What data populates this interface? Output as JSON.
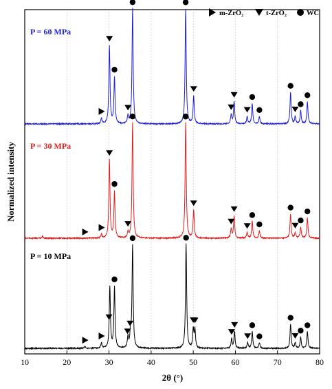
{
  "chart_data": {
    "type": "line",
    "xlabel": "2θ (°)",
    "ylabel": "Normalized intensity",
    "xlim": [
      10,
      80
    ],
    "x_ticks": [
      10,
      20,
      30,
      40,
      50,
      60,
      70,
      80
    ],
    "x_tick_labels": [
      "10",
      "20",
      "30",
      "40",
      "50",
      "60",
      "70",
      "80"
    ],
    "grid": "vertical dashed at major ticks",
    "legend": {
      "placement": "top-right",
      "entries": [
        {
          "marker": "right-triangle",
          "label": "m-ZrO₂"
        },
        {
          "marker": "down-triangle",
          "label": "t-ZrO₂"
        },
        {
          "marker": "circle",
          "label": "WC"
        }
      ]
    },
    "series": [
      {
        "name": "P = 60 MPa",
        "color": "#1f1fd6",
        "peaks": [
          {
            "x": 28.2,
            "h": 0.03
          },
          {
            "x": 30.1,
            "h": 0.42
          },
          {
            "x": 31.3,
            "h": 0.25
          },
          {
            "x": 34.5,
            "h": 0.04
          },
          {
            "x": 35.6,
            "h": 0.62
          },
          {
            "x": 48.2,
            "h": 0.62
          },
          {
            "x": 50.1,
            "h": 0.15
          },
          {
            "x": 59.0,
            "h": 0.05
          },
          {
            "x": 59.7,
            "h": 0.12
          },
          {
            "x": 62.8,
            "h": 0.04
          },
          {
            "x": 64.0,
            "h": 0.11
          },
          {
            "x": 65.7,
            "h": 0.04
          },
          {
            "x": 73.1,
            "h": 0.17
          },
          {
            "x": 74.2,
            "h": 0.04
          },
          {
            "x": 75.5,
            "h": 0.07
          },
          {
            "x": 77.1,
            "h": 0.12
          }
        ],
        "markers": [
          {
            "type": "m",
            "x": 28.2
          },
          {
            "type": "t",
            "x": 30.1
          },
          {
            "type": "wc",
            "x": 31.3
          },
          {
            "type": "t",
            "x": 34.5
          },
          {
            "type": "wc",
            "x": 35.6
          },
          {
            "type": "wc",
            "x": 48.2
          },
          {
            "type": "t",
            "x": 50.1
          },
          {
            "type": "t",
            "x": 59.0
          },
          {
            "type": "t",
            "x": 59.7
          },
          {
            "type": "t",
            "x": 62.8
          },
          {
            "type": "wc",
            "x": 64.0
          },
          {
            "type": "wc",
            "x": 65.7
          },
          {
            "type": "wc",
            "x": 73.1
          },
          {
            "type": "t",
            "x": 74.2
          },
          {
            "type": "wc",
            "x": 75.5
          },
          {
            "type": "wc",
            "x": 77.1
          }
        ]
      },
      {
        "name": "P = 30 MPa",
        "color": "#e02020",
        "peaks": [
          {
            "x": 14.2,
            "h": 0.01
          },
          {
            "x": 28.2,
            "h": 0.02
          },
          {
            "x": 30.1,
            "h": 0.42
          },
          {
            "x": 31.3,
            "h": 0.25
          },
          {
            "x": 34.5,
            "h": 0.03
          },
          {
            "x": 35.6,
            "h": 0.62
          },
          {
            "x": 48.2,
            "h": 0.62
          },
          {
            "x": 50.1,
            "h": 0.15
          },
          {
            "x": 59.0,
            "h": 0.05
          },
          {
            "x": 59.7,
            "h": 0.12
          },
          {
            "x": 62.8,
            "h": 0.03
          },
          {
            "x": 64.0,
            "h": 0.09
          },
          {
            "x": 65.7,
            "h": 0.04
          },
          {
            "x": 73.1,
            "h": 0.13
          },
          {
            "x": 74.2,
            "h": 0.03
          },
          {
            "x": 75.5,
            "h": 0.06
          },
          {
            "x": 77.1,
            "h": 0.11
          }
        ],
        "markers": [
          {
            "type": "m",
            "x": 24.3
          },
          {
            "type": "m",
            "x": 28.2
          },
          {
            "type": "t",
            "x": 30.1
          },
          {
            "type": "wc",
            "x": 31.3
          },
          {
            "type": "t",
            "x": 34.5
          },
          {
            "type": "wc",
            "x": 35.6
          },
          {
            "type": "wc",
            "x": 48.2
          },
          {
            "type": "t",
            "x": 50.1
          },
          {
            "type": "t",
            "x": 59.0
          },
          {
            "type": "t",
            "x": 59.7
          },
          {
            "type": "t",
            "x": 62.8
          },
          {
            "type": "wc",
            "x": 64.0
          },
          {
            "type": "wc",
            "x": 65.7
          },
          {
            "type": "wc",
            "x": 73.1
          },
          {
            "type": "t",
            "x": 74.2
          },
          {
            "type": "wc",
            "x": 75.5
          },
          {
            "type": "wc",
            "x": 77.1
          }
        ]
      },
      {
        "name": "P = 10 MPa",
        "color": "#000000",
        "peaks": [
          {
            "x": 24.3,
            "h": 0.01
          },
          {
            "x": 28.2,
            "h": 0.03
          },
          {
            "x": 30.2,
            "h": 0.33
          },
          {
            "x": 31.3,
            "h": 0.33
          },
          {
            "x": 34.5,
            "h": 0.06
          },
          {
            "x": 35.1,
            "h": 0.08
          },
          {
            "x": 35.6,
            "h": 0.55
          },
          {
            "x": 48.3,
            "h": 0.56
          },
          {
            "x": 50.0,
            "h": 0.1
          },
          {
            "x": 50.4,
            "h": 0.1
          },
          {
            "x": 59.1,
            "h": 0.05
          },
          {
            "x": 59.8,
            "h": 0.09
          },
          {
            "x": 62.9,
            "h": 0.03
          },
          {
            "x": 64.0,
            "h": 0.09
          },
          {
            "x": 65.7,
            "h": 0.03
          },
          {
            "x": 73.1,
            "h": 0.13
          },
          {
            "x": 74.2,
            "h": 0.03
          },
          {
            "x": 75.5,
            "h": 0.06
          },
          {
            "x": 77.1,
            "h": 0.09
          }
        ],
        "markers": [
          {
            "type": "m",
            "x": 24.3
          },
          {
            "type": "m",
            "x": 28.2
          },
          {
            "type": "t",
            "x": 30.0
          },
          {
            "type": "wc",
            "x": 31.3
          },
          {
            "type": "t",
            "x": 34.4
          },
          {
            "type": "t",
            "x": 35.0
          },
          {
            "type": "wc",
            "x": 35.6
          },
          {
            "type": "wc",
            "x": 48.3
          },
          {
            "type": "t",
            "x": 50.0
          },
          {
            "type": "t",
            "x": 50.4
          },
          {
            "type": "t",
            "x": 59.1
          },
          {
            "type": "t",
            "x": 59.8
          },
          {
            "type": "t",
            "x": 62.9
          },
          {
            "type": "wc",
            "x": 64.0
          },
          {
            "type": "wc",
            "x": 65.7
          },
          {
            "type": "wc",
            "x": 73.1
          },
          {
            "type": "t",
            "x": 74.2
          },
          {
            "type": "wc",
            "x": 75.5
          },
          {
            "type": "wc",
            "x": 77.1
          }
        ]
      }
    ]
  }
}
